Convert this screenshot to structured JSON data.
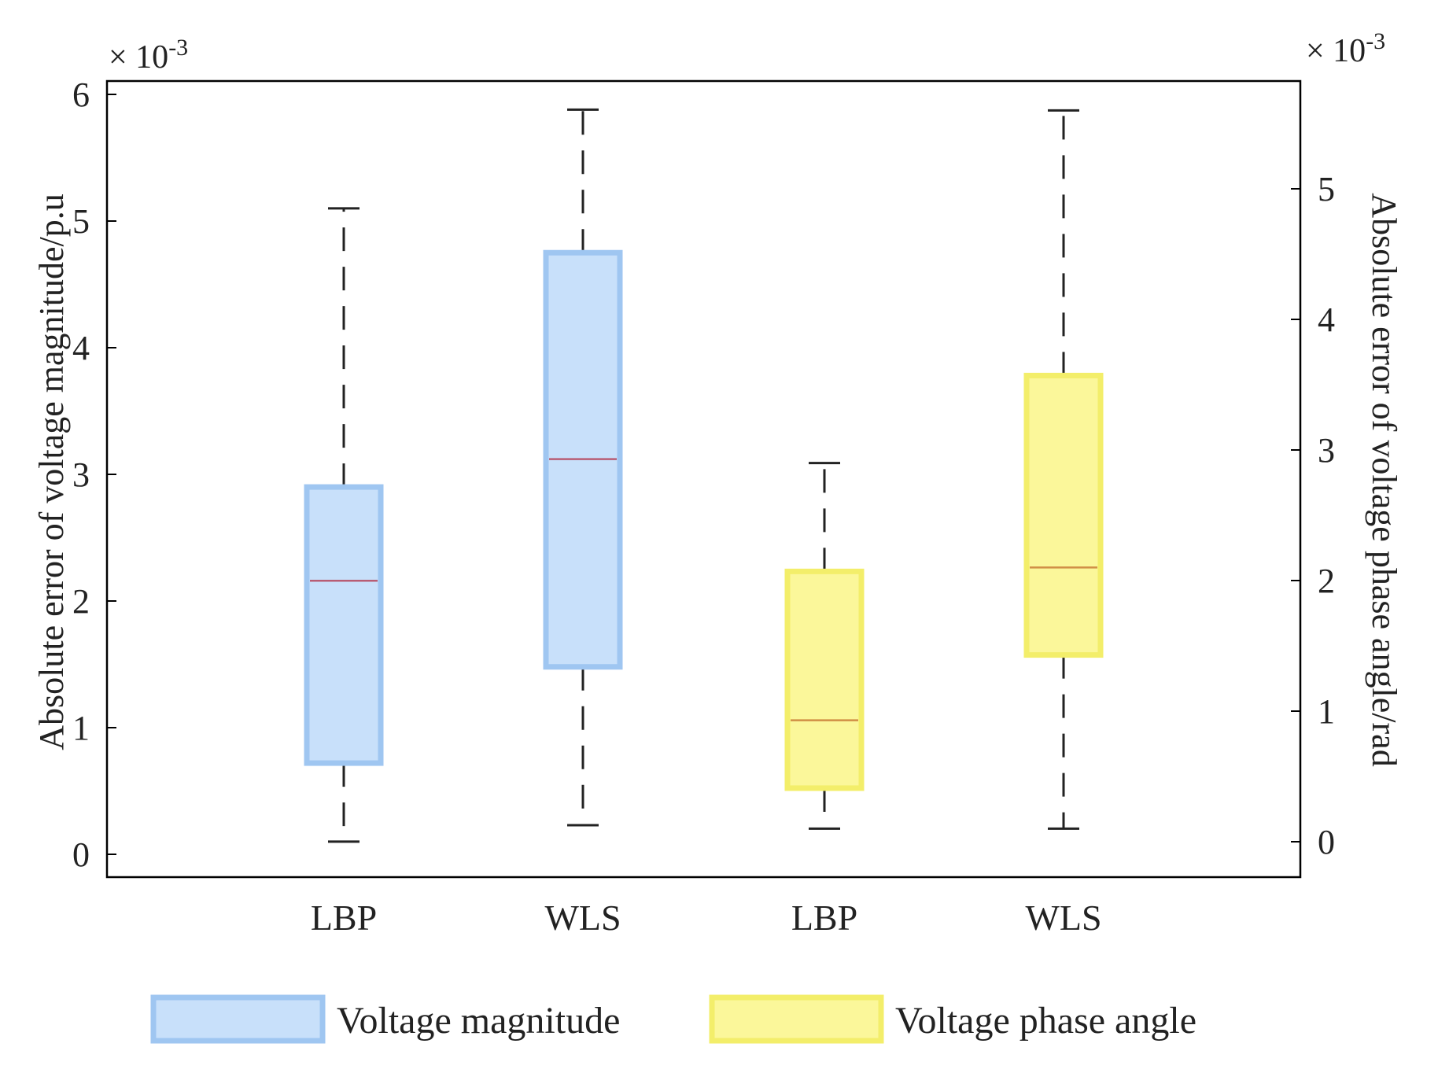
{
  "chart_data": {
    "type": "box",
    "categories": [
      "LBP",
      "WLS",
      "LBP",
      "WLS"
    ],
    "exponent_left": "× 10-3",
    "exponent_right": "× 10-3",
    "ylabel_left": "Absolute error of voltage magnitude/p.u",
    "ylabel_right": "Absolute error of voltage phase angle/rad",
    "ylim_left": [
      0,
      6
    ],
    "ylim_right": [
      0,
      5.7
    ],
    "yticks_left": [
      0,
      1,
      2,
      3,
      4,
      5,
      6
    ],
    "yticks_right": [
      0,
      1,
      2,
      3,
      4,
      5
    ],
    "series": [
      {
        "name": "Voltage magnitude",
        "axis": "left",
        "color": "#c8e0fa",
        "edge_color": "#9fc6f1",
        "median_color": "#b85d74",
        "boxes": [
          {
            "category_index": 0,
            "whisker_low": 0.1,
            "q1": 0.72,
            "median": 2.16,
            "q3": 2.9,
            "whisker_high": 5.1
          },
          {
            "category_index": 1,
            "whisker_low": 0.23,
            "q1": 1.48,
            "median": 3.12,
            "q3": 4.75,
            "whisker_high": 5.88
          }
        ]
      },
      {
        "name": "Voltage phase angle",
        "axis": "right",
        "color": "#fbf79a",
        "edge_color": "#f3ee6a",
        "median_color": "#d08f45",
        "boxes": [
          {
            "category_index": 2,
            "whisker_low": 0.1,
            "q1": 0.41,
            "median": 0.93,
            "q3": 2.07,
            "whisker_high": 2.9
          },
          {
            "category_index": 3,
            "whisker_low": 0.1,
            "q1": 1.43,
            "median": 2.1,
            "q3": 3.57,
            "whisker_high": 5.6
          }
        ]
      }
    ],
    "legend": [
      "Voltage magnitude",
      "Voltage phase angle"
    ],
    "legend_position": "bottom",
    "grid": false
  }
}
